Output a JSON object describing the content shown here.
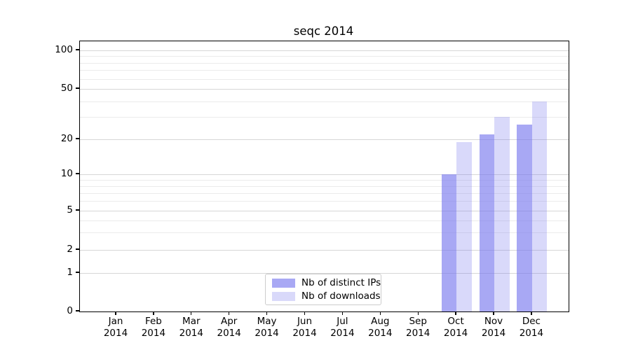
{
  "title": "seqc 2014",
  "colors": {
    "bar_base": "119,119,238",
    "ips_alpha": 0.64,
    "downloads_alpha": 0.28,
    "grid_major": "#d6d6d6",
    "grid_minor": "#ebebeb",
    "axis": "#000000",
    "legend_border": "#cccccc"
  },
  "y_axis": {
    "tick_labels": [
      "100",
      "50",
      "20",
      "10",
      "5",
      "2",
      "1",
      "0"
    ],
    "tick_values": [
      100,
      50,
      20,
      10,
      5,
      2,
      1,
      0
    ],
    "minor_values": [
      3,
      4,
      6,
      7,
      8,
      9,
      30,
      40,
      60,
      70,
      80,
      90
    ]
  },
  "x_axis": {
    "months": [
      {
        "label": "Jan",
        "year": "2014"
      },
      {
        "label": "Feb",
        "year": "2014"
      },
      {
        "label": "Mar",
        "year": "2014"
      },
      {
        "label": "Apr",
        "year": "2014"
      },
      {
        "label": "May",
        "year": "2014"
      },
      {
        "label": "Jun",
        "year": "2014"
      },
      {
        "label": "Jul",
        "year": "2014"
      },
      {
        "label": "Aug",
        "year": "2014"
      },
      {
        "label": "Sep",
        "year": "2014"
      },
      {
        "label": "Oct",
        "year": "2014"
      },
      {
        "label": "Nov",
        "year": "2014"
      },
      {
        "label": "Dec",
        "year": "2014"
      }
    ]
  },
  "legend": {
    "items": [
      {
        "label": "Nb of distinct IPs",
        "series": "ips"
      },
      {
        "label": "Nb of downloads",
        "series": "downloads"
      }
    ]
  },
  "chart_data": {
    "type": "bar",
    "title": "seqc 2014",
    "categories": [
      "Jan 2014",
      "Feb 2014",
      "Mar 2014",
      "Apr 2014",
      "May 2014",
      "Jun 2014",
      "Jul 2014",
      "Aug 2014",
      "Sep 2014",
      "Oct 2014",
      "Nov 2014",
      "Dec 2014"
    ],
    "series": [
      {
        "name": "Nb of distinct IPs",
        "values": [
          0,
          0,
          0,
          0,
          0,
          0,
          0,
          0,
          0,
          10,
          22,
          26
        ]
      },
      {
        "name": "Nb of downloads",
        "values": [
          0,
          0,
          0,
          0,
          0,
          0,
          0,
          0,
          0,
          19,
          30,
          40
        ]
      }
    ],
    "xlabel": "",
    "ylabel": "",
    "yscale": "symlog-like, ticks at 0,1,2,5,10,20,50,100",
    "ylim": [
      0,
      115
    ],
    "grid": true,
    "legend_position": "lower center"
  }
}
